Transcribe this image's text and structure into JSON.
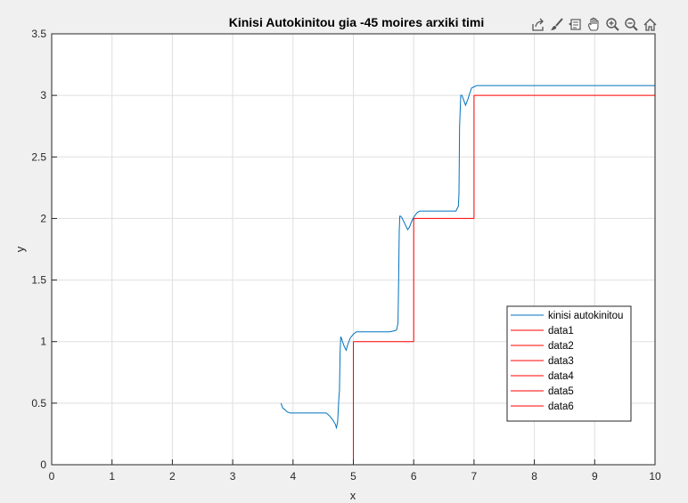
{
  "toolbar": {
    "icons": [
      "export-icon",
      "brush-icon",
      "datatip-icon",
      "pan-icon",
      "zoom-in-icon",
      "zoom-out-icon",
      "home-icon"
    ]
  },
  "chart_data": {
    "type": "line",
    "title": "Kinisi Autokinitou gia -45 moires arxiki timi",
    "xlabel": "x",
    "ylabel": "y",
    "xlim": [
      0,
      10
    ],
    "ylim": [
      0,
      3.5
    ],
    "xticks": [
      "0",
      "1",
      "2",
      "3",
      "4",
      "5",
      "6",
      "7",
      "8",
      "9",
      "10"
    ],
    "yticks": [
      "0",
      "0.5",
      "1",
      "1.5",
      "2",
      "2.5",
      "3",
      "3.5"
    ],
    "grid": true,
    "legend_position": "lower-right",
    "colors": {
      "car": "#0072bd",
      "reference": "#ff0000",
      "axes_bg": "#ffffff",
      "figure_bg": "#f0f0f0",
      "grid": "#dfdfdf"
    },
    "series": [
      {
        "name": "kinisi autokinitou",
        "color": "#0072bd",
        "x": [
          3.8,
          3.83,
          3.86,
          3.9,
          3.95,
          4.0,
          4.2,
          4.4,
          4.55,
          4.6,
          4.65,
          4.7,
          4.72,
          4.74,
          4.76,
          4.77,
          4.78,
          4.79,
          4.8,
          4.82,
          4.85,
          4.88,
          4.91,
          4.95,
          5.0,
          5.05,
          5.1,
          5.2,
          5.3,
          5.4,
          5.5,
          5.6,
          5.7,
          5.72,
          5.74,
          5.75,
          5.76,
          5.77,
          5.78,
          5.8,
          5.83,
          5.86,
          5.9,
          5.93,
          5.96,
          6.0,
          6.03,
          6.06,
          6.1,
          6.2,
          6.4,
          6.6,
          6.7,
          6.72,
          6.74,
          6.75,
          6.76,
          6.78,
          6.8,
          6.83,
          6.86,
          6.9,
          6.93,
          6.96,
          7.0,
          7.05,
          7.5,
          8,
          9,
          10
        ],
        "y": [
          0.5,
          0.46,
          0.45,
          0.43,
          0.42,
          0.42,
          0.42,
          0.42,
          0.42,
          0.4,
          0.37,
          0.33,
          0.3,
          0.35,
          0.55,
          0.6,
          0.9,
          1.04,
          1.03,
          1.0,
          0.96,
          0.93,
          0.98,
          1.03,
          1.06,
          1.08,
          1.08,
          1.08,
          1.08,
          1.08,
          1.08,
          1.08,
          1.09,
          1.1,
          1.15,
          1.5,
          1.9,
          2.02,
          2.02,
          2.01,
          1.98,
          1.95,
          1.91,
          1.93,
          1.97,
          2.01,
          2.03,
          2.05,
          2.06,
          2.06,
          2.06,
          2.06,
          2.06,
          2.08,
          2.1,
          2.2,
          2.75,
          3.0,
          3.0,
          2.96,
          2.92,
          2.97,
          3.02,
          3.06,
          3.07,
          3.08,
          3.08,
          3.08,
          3.08,
          3.08
        ]
      },
      {
        "name": "data1",
        "color": "#ff0000",
        "x": [
          5.0,
          5.0
        ],
        "y": [
          0,
          1
        ]
      },
      {
        "name": "data2",
        "color": "#ff0000",
        "x": [
          5.0,
          6.0
        ],
        "y": [
          1,
          1
        ]
      },
      {
        "name": "data3",
        "color": "#ff0000",
        "x": [
          6.0,
          6.0
        ],
        "y": [
          1,
          2
        ]
      },
      {
        "name": "data4",
        "color": "#ff0000",
        "x": [
          6.0,
          7.0
        ],
        "y": [
          2,
          2
        ]
      },
      {
        "name": "data5",
        "color": "#ff0000",
        "x": [
          7.0,
          7.0
        ],
        "y": [
          2,
          3
        ]
      },
      {
        "name": "data6",
        "color": "#ff0000",
        "x": [
          7.0,
          10.0
        ],
        "y": [
          3,
          3
        ]
      }
    ]
  }
}
